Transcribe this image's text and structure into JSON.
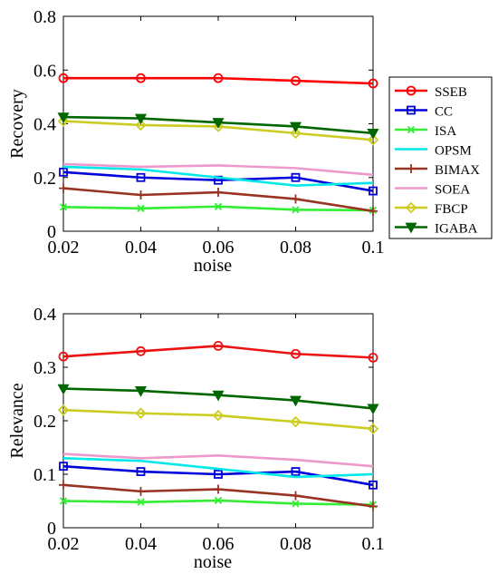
{
  "chart_data": [
    {
      "type": "line",
      "xlabel": "noise",
      "ylabel": "Recovery",
      "x": [
        0.02,
        0.04,
        0.06,
        0.08,
        0.1
      ],
      "x_tick_labels": [
        "0.02",
        "0.04",
        "0.06",
        "0.08",
        "0.1"
      ],
      "xlim": [
        0.02,
        0.1
      ],
      "ylim": [
        0,
        0.8
      ],
      "y_ticks": [
        0,
        0.2,
        0.4,
        0.6,
        0.8
      ],
      "y_tick_labels": [
        "0",
        "0.2",
        "0.4",
        "0.6",
        "0.8"
      ],
      "grid": false,
      "legend": "right",
      "series": [
        {
          "name": "SSEB",
          "color": "#ff0000",
          "marker": "circle",
          "values": [
            0.57,
            0.57,
            0.57,
            0.56,
            0.55
          ]
        },
        {
          "name": "CC",
          "color": "#0000dd",
          "marker": "square",
          "values": [
            0.22,
            0.2,
            0.19,
            0.2,
            0.15
          ]
        },
        {
          "name": "ISA",
          "color": "#33ee33",
          "marker": "x",
          "values": [
            0.09,
            0.085,
            0.092,
            0.08,
            0.078
          ]
        },
        {
          "name": "OPSM",
          "color": "#00e8e8",
          "marker": "none",
          "values": [
            0.24,
            0.23,
            0.2,
            0.17,
            0.18
          ]
        },
        {
          "name": "BIMAX",
          "color": "#993322",
          "marker": "plus",
          "values": [
            0.16,
            0.135,
            0.145,
            0.12,
            0.075
          ]
        },
        {
          "name": "SOEA",
          "color": "#ee99cc",
          "marker": "none",
          "values": [
            0.25,
            0.24,
            0.245,
            0.235,
            0.21
          ]
        },
        {
          "name": "FBCP",
          "color": "#cccc22",
          "marker": "diamond",
          "values": [
            0.41,
            0.395,
            0.39,
            0.365,
            0.34
          ]
        },
        {
          "name": "IGABA",
          "color": "#006600",
          "marker": "triangle-down",
          "values": [
            0.425,
            0.42,
            0.405,
            0.39,
            0.365
          ]
        }
      ]
    },
    {
      "type": "line",
      "xlabel": "noise",
      "ylabel": "Relevance",
      "x": [
        0.02,
        0.04,
        0.06,
        0.08,
        0.1
      ],
      "x_tick_labels": [
        "0.02",
        "0.04",
        "0.06",
        "0.08",
        "0.1"
      ],
      "xlim": [
        0.02,
        0.1
      ],
      "ylim": [
        0,
        0.4
      ],
      "y_ticks": [
        0,
        0.1,
        0.2,
        0.3,
        0.4
      ],
      "y_tick_labels": [
        "0",
        "0.1",
        "0.2",
        "0.3",
        "0.4"
      ],
      "grid": false,
      "legend": "none",
      "series": [
        {
          "name": "SSEB",
          "color": "#ee1111",
          "marker": "circle",
          "values": [
            0.32,
            0.33,
            0.34,
            0.325,
            0.318
          ]
        },
        {
          "name": "CC",
          "color": "#0000dd",
          "marker": "square",
          "values": [
            0.115,
            0.105,
            0.1,
            0.105,
            0.08
          ]
        },
        {
          "name": "ISA",
          "color": "#33ee33",
          "marker": "x",
          "values": [
            0.05,
            0.048,
            0.051,
            0.045,
            0.043
          ]
        },
        {
          "name": "OPSM",
          "color": "#00e8e8",
          "marker": "none",
          "values": [
            0.13,
            0.125,
            0.11,
            0.095,
            0.1
          ]
        },
        {
          "name": "BIMAX",
          "color": "#993322",
          "marker": "plus",
          "values": [
            0.08,
            0.068,
            0.072,
            0.06,
            0.04
          ]
        },
        {
          "name": "SOEA",
          "color": "#ee99cc",
          "marker": "none",
          "values": [
            0.138,
            0.13,
            0.135,
            0.127,
            0.115
          ]
        },
        {
          "name": "FBCP",
          "color": "#cccc22",
          "marker": "diamond",
          "values": [
            0.22,
            0.214,
            0.21,
            0.198,
            0.185
          ]
        },
        {
          "name": "IGABA",
          "color": "#006600",
          "marker": "triangle-down",
          "values": [
            0.26,
            0.256,
            0.248,
            0.238,
            0.223
          ]
        }
      ]
    }
  ]
}
